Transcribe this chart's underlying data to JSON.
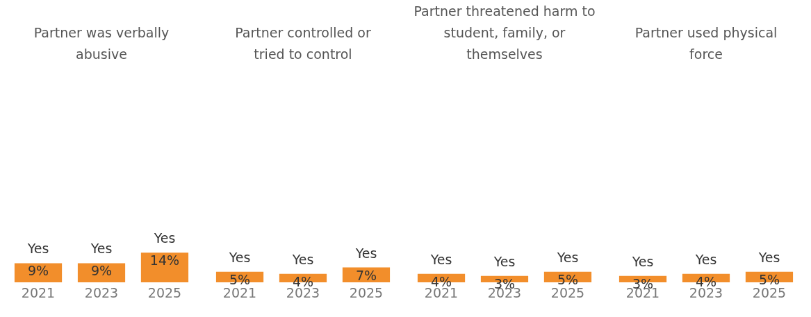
{
  "chart_data": [
    {
      "type": "bar",
      "title": "Partner was verbally abusive",
      "categories": [
        "2021",
        "2023",
        "2025"
      ],
      "series": [
        {
          "name": "Yes",
          "color": "#f28e2b",
          "values": [
            9,
            9,
            14
          ],
          "value_labels": [
            "9%",
            "9%",
            "14%"
          ]
        }
      ],
      "tick_labels": "x"
    },
    {
      "type": "bar",
      "title": "Partner controlled or tried to control",
      "categories": [
        "2021",
        "2023",
        "2025"
      ],
      "series": [
        {
          "name": "Yes",
          "color": "#f28e2b",
          "values": [
            5,
            4,
            7
          ],
          "value_labels": [
            "5%",
            "4%",
            "7%"
          ]
        }
      ],
      "tick_labels": "x"
    },
    {
      "type": "bar",
      "title": "Partner threatened harm to student, family, or themselves",
      "categories": [
        "2021",
        "2023",
        "2025"
      ],
      "series": [
        {
          "name": "Yes",
          "color": "#f28e2b",
          "values": [
            4,
            3,
            5
          ],
          "value_labels": [
            "4%",
            "3%",
            "5%"
          ]
        }
      ],
      "tick_labels": "x"
    },
    {
      "type": "bar",
      "title": "Partner used physical force",
      "categories": [
        "2021",
        "2023",
        "2025"
      ],
      "series": [
        {
          "name": "Yes",
          "color": "#f28e2b",
          "values": [
            3,
            4,
            5
          ],
          "value_labels": [
            "3%",
            "4%",
            "5%"
          ]
        }
      ],
      "tick_labels": "x"
    }
  ]
}
